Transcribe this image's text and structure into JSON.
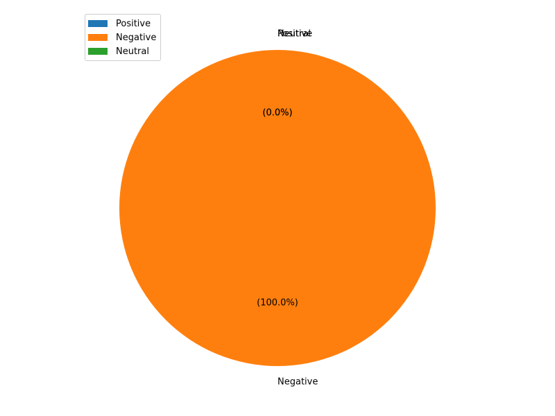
{
  "chart_data": {
    "type": "pie",
    "title": "",
    "categories": [
      "Positive",
      "Negative",
      "Neutral"
    ],
    "values": [
      0,
      100,
      0
    ],
    "percent_labels": [
      "(0.0%)",
      "(100.0%)",
      "(0.0%)"
    ],
    "colors": [
      "#1f77b4",
      "#ff7f0e",
      "#2ca02c"
    ],
    "start_angle_deg": 90,
    "direction": "counterclockwise",
    "legend": {
      "placement": "top-left",
      "entries": [
        "Positive",
        "Negative",
        "Neutral"
      ]
    }
  }
}
